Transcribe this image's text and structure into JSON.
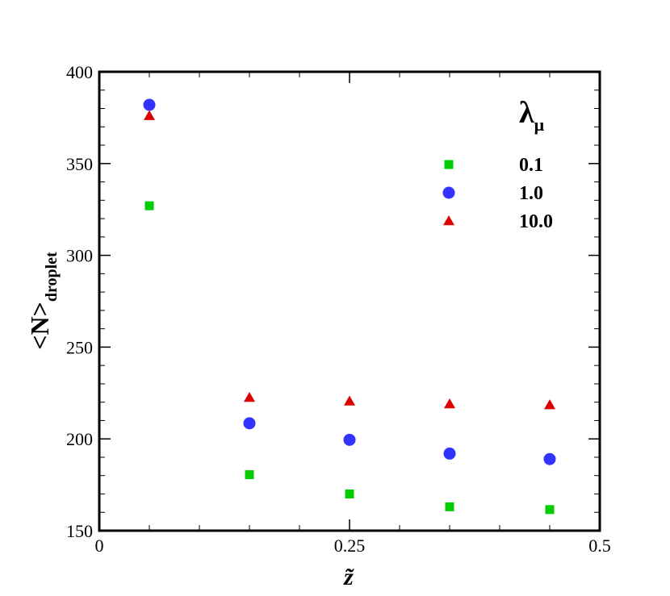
{
  "chart_data": {
    "type": "scatter",
    "xlabel": "z̃",
    "ylabel": "<N>",
    "ylabel_subscript": "droplet",
    "xlim": [
      0,
      0.5
    ],
    "ylim": [
      150,
      400
    ],
    "x_ticks": [
      "0",
      "0.25",
      "0.5"
    ],
    "y_ticks": [
      "150",
      "200",
      "250",
      "300",
      "350",
      "400"
    ],
    "legend_title": "λ",
    "legend_title_subscript": "μ",
    "legend_position": "top-right",
    "grid": false,
    "series": [
      {
        "name": "0.1",
        "marker": "square",
        "color": "#00cc00",
        "x": [
          0.05,
          0.15,
          0.25,
          0.35,
          0.45
        ],
        "y": [
          327,
          180.5,
          170,
          163,
          161.5
        ]
      },
      {
        "name": "1.0",
        "marker": "circle",
        "color": "#3333ff",
        "x": [
          0.05,
          0.15,
          0.25,
          0.35,
          0.45
        ],
        "y": [
          382,
          208.5,
          199.5,
          192,
          189
        ]
      },
      {
        "name": "10.0",
        "marker": "triangle",
        "color": "#dd0000",
        "x": [
          0.05,
          0.15,
          0.25,
          0.35,
          0.45
        ],
        "y": [
          376,
          222.5,
          220.5,
          219,
          218.5
        ]
      }
    ]
  }
}
